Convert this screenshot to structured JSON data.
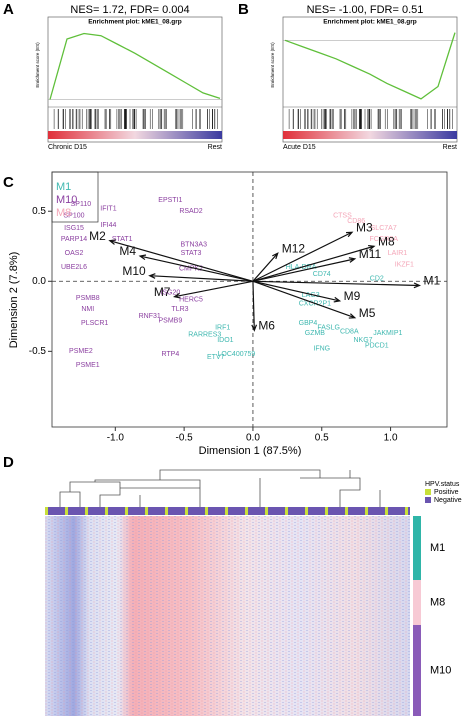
{
  "panel_a": {
    "label": "A",
    "stat": "NES= 1.72, FDR= 0.004",
    "title": "Enrichment plot: kME1_08.grp",
    "ylabel": "Enrichment score (ES)",
    "left": "Chronic D15",
    "right": "Rest",
    "values": [
      0,
      0.55,
      0.6,
      0.58,
      0.5,
      0.42,
      0.33,
      0.24,
      0.15,
      0.06,
      0.01
    ],
    "ylim": [
      -0.05,
      0.65
    ],
    "color": "#5fbf3a"
  },
  "panel_b": {
    "label": "B",
    "stat": "NES= -1.00, FDR= 0.51",
    "title": "Enrichment plot: kME1_08.grp",
    "ylabel": "Enrichment score (ES)",
    "left": "Acute D15",
    "right": "Rest",
    "values": [
      0,
      -0.04,
      -0.08,
      -0.12,
      -0.17,
      -0.22,
      -0.28,
      -0.33,
      -0.38,
      -0.3,
      0.05
    ],
    "ylim": [
      -0.42,
      0.08
    ],
    "color": "#5fbf3a"
  },
  "chart_data": {
    "type": "scatter",
    "label": "C",
    "xlabel": "Dimension 1 (87.5%)",
    "ylabel": "Dimension 2 (7.8%)",
    "xlim": [
      -1.46,
      1.41
    ],
    "ylim": [
      -1.04,
      0.78
    ],
    "xticks": [
      {
        "value": -1,
        "label": "-1.0"
      },
      -0.5,
      {
        "value": 0,
        "label": "0.0"
      },
      0.5,
      {
        "value": 1,
        "label": "1.0"
      }
    ],
    "yticks": [
      -0.5,
      {
        "value": 0,
        "label": "0.0"
      },
      0.5
    ],
    "series": [
      {
        "name": "M1",
        "color": "#3fb8b0",
        "labels": [
          "CXCR2P1",
          "LAG3",
          "GBP4",
          "GZMB",
          "FASLG",
          "NKG7",
          "IFNG",
          "PDCD1",
          "JAKMIP1",
          "CD8A",
          "IDO1",
          "IRF1",
          "ETV7",
          "LOC400759",
          "RARRES3",
          "CD74",
          "HLA-DRA",
          "CD2"
        ],
        "x": [
          0.45,
          0.42,
          0.4,
          0.45,
          0.55,
          0.8,
          0.5,
          0.9,
          0.98,
          0.7,
          -0.2,
          -0.22,
          -0.27,
          -0.12,
          -0.35,
          0.5,
          0.35,
          0.9
        ],
        "y": [
          -0.16,
          -0.1,
          -0.3,
          -0.37,
          -0.33,
          -0.42,
          -0.48,
          -0.46,
          -0.37,
          -0.36,
          -0.42,
          -0.33,
          -0.54,
          -0.52,
          -0.38,
          0.05,
          0.1,
          0.02
        ]
      },
      {
        "name": "M10",
        "color": "#8b3fa0",
        "labels": [
          "EPSTI1",
          "RSAD2",
          "SP110",
          "SP100",
          "IFIT1",
          "IFI44",
          "ISG15",
          "STAT1",
          "PARP14",
          "OAS2",
          "UBE2L6",
          "PSMB8",
          "NMI",
          "PLSCR1",
          "PSME2",
          "PSME1",
          "BTN3A3",
          "STAT3",
          "CMPK2",
          "HERC5",
          "TLR3",
          "ISG20",
          "RNF31",
          "PSMB9",
          "RTP4"
        ],
        "x": [
          -0.6,
          -0.45,
          -1.25,
          -1.3,
          -1.05,
          -1.05,
          -1.3,
          -0.95,
          -1.3,
          -1.3,
          -1.3,
          -1.2,
          -1.2,
          -1.15,
          -1.25,
          -1.2,
          -0.43,
          -0.45,
          -0.45,
          -0.45,
          -0.53,
          -0.6,
          -0.75,
          -0.6,
          -0.6
        ],
        "y": [
          0.58,
          0.5,
          0.55,
          0.47,
          0.52,
          0.4,
          0.38,
          0.3,
          0.3,
          0.2,
          0.1,
          -0.12,
          -0.2,
          -0.3,
          -0.5,
          -0.6,
          0.26,
          0.2,
          0.09,
          -0.13,
          -0.2,
          -0.08,
          -0.25,
          -0.28,
          -0.52
        ]
      },
      {
        "name": "M8",
        "color": "#f4a6b8",
        "labels": [
          "CTSS",
          "CD86",
          "SLC7A7",
          "FCGR2A",
          "LAIR1",
          "IKZF1"
        ],
        "x": [
          0.65,
          0.75,
          0.95,
          0.95,
          1.05,
          1.1
        ],
        "y": [
          0.47,
          0.43,
          0.38,
          0.3,
          0.2,
          0.12
        ]
      }
    ],
    "arrows": [
      {
        "name": "M1",
        "x": 1.21,
        "y": -0.03,
        "color": "#3fb8b0"
      },
      {
        "name": "M3",
        "x": 0.72,
        "y": 0.35,
        "color": "#111111"
      },
      {
        "name": "M8",
        "x": 0.88,
        "y": 0.25,
        "color": "#111111"
      },
      {
        "name": "M11",
        "x": 0.74,
        "y": 0.16,
        "color": "#111111"
      },
      {
        "name": "M12",
        "x": 0.18,
        "y": 0.2,
        "color": "#111111"
      },
      {
        "name": "M9",
        "x": 0.63,
        "y": -0.14,
        "color": "#111111"
      },
      {
        "name": "M5",
        "x": 0.74,
        "y": -0.26,
        "color": "#111111"
      },
      {
        "name": "M6",
        "x": 0.01,
        "y": -0.35,
        "color": "#111111"
      },
      {
        "name": "M2",
        "x": -1.04,
        "y": 0.29,
        "color": "#111111"
      },
      {
        "name": "M4",
        "x": -0.82,
        "y": 0.18,
        "color": "#111111"
      },
      {
        "name": "M10",
        "x": -0.75,
        "y": 0.04,
        "color": "#111111"
      },
      {
        "name": "M7",
        "x": -0.57,
        "y": -0.11,
        "color": "#111111"
      }
    ]
  },
  "panel_d": {
    "label": "D",
    "legend_title": "HPV.status",
    "legend": [
      "Positive",
      "Negative"
    ],
    "legend_colors": [
      "#c8e03a",
      "#6a55b0"
    ],
    "rows": [
      "M1",
      "M8",
      "M10"
    ],
    "row_colors": [
      "#2fb5a8",
      "#f7c9d4",
      "#8a5bb8"
    ]
  }
}
